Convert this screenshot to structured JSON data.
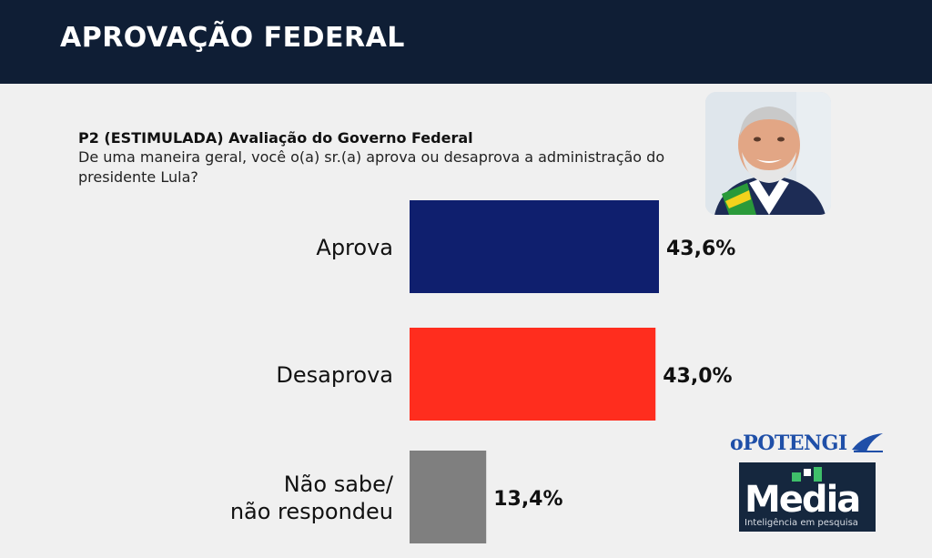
{
  "header": {
    "title": "APROVAÇÃO FEDERAL"
  },
  "question": {
    "title": "P2 (ESTIMULADA) Avaliação do Governo Federal",
    "text": "De uma maneira geral, você o(a) sr.(a) aprova ou desaprova a administração do presidente Lula?"
  },
  "chart_data": {
    "type": "bar",
    "orientation": "horizontal",
    "categories": [
      "Aprova",
      "Desaprova",
      "Não sabe/ não respondeu"
    ],
    "category_lines": [
      [
        "Aprova"
      ],
      [
        "Desaprova"
      ],
      [
        "Não sabe/",
        "não respondeu"
      ]
    ],
    "values": [
      43.6,
      43.0,
      13.4
    ],
    "value_labels": [
      "43,6%",
      "43,0%",
      "13,4%"
    ],
    "colors": [
      "#0f1f6e",
      "#ff2d1e",
      "#7f7f7f"
    ],
    "xlim": [
      0,
      50
    ],
    "grid": false,
    "legend": "none"
  },
  "logos": {
    "potengi": "oPOTENGI",
    "media": {
      "name": "Media",
      "tagline": "Inteligência em pesquisa"
    }
  },
  "icons": {
    "photo": "president-photo",
    "potengi_mark": "potengi-bird-icon",
    "media_mark": "media-squares-icon"
  }
}
